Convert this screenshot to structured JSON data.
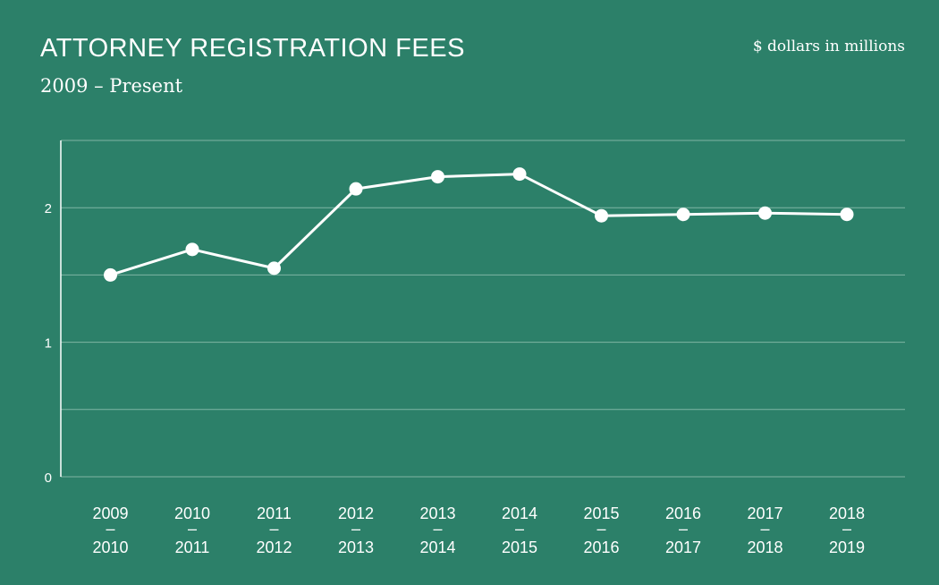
{
  "header": {
    "title": "ATTORNEY REGISTRATION FEES",
    "subtitle": "2009 – Present",
    "units": "$ dollars in millions"
  },
  "colors": {
    "background": "#2c8069",
    "line": "#ffffff",
    "grid": "#7fb5a4"
  },
  "chart_data": {
    "type": "line",
    "title": "ATTORNEY REGISTRATION FEES",
    "subtitle": "2009 – Present",
    "xlabel": "",
    "ylabel": "$ dollars in millions",
    "categories": [
      [
        "2009",
        "–",
        "2010"
      ],
      [
        "2010",
        "–",
        "2011"
      ],
      [
        "2011",
        "–",
        "2012"
      ],
      [
        "2012",
        "–",
        "2013"
      ],
      [
        "2013",
        "–",
        "2014"
      ],
      [
        "2014",
        "–",
        "2015"
      ],
      [
        "2015",
        "–",
        "2016"
      ],
      [
        "2016",
        "–",
        "2017"
      ],
      [
        "2017",
        "–",
        "2018"
      ],
      [
        "2018",
        "–",
        "2019"
      ]
    ],
    "values": [
      1.5,
      1.69,
      1.55,
      2.14,
      2.23,
      2.25,
      1.94,
      1.95,
      1.96,
      1.95
    ],
    "ylim": [
      0,
      2.5
    ],
    "yticks": [
      0,
      1,
      2
    ],
    "grid": true,
    "legend": "none"
  }
}
